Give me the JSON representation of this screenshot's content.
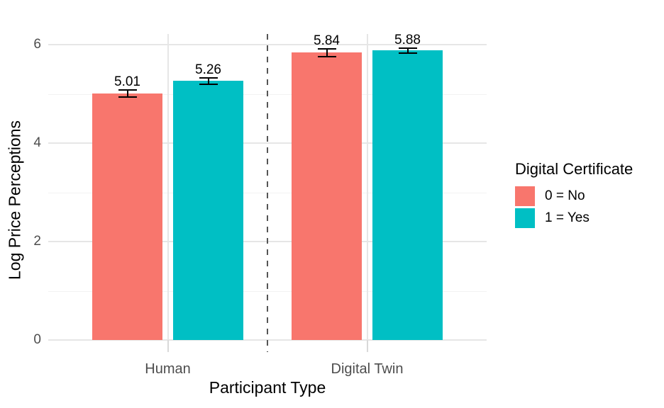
{
  "chart_data": {
    "type": "bar",
    "title": "",
    "xlabel": "Participant Type",
    "ylabel": "Log Price Perceptions",
    "categories": [
      "Human",
      "Digital Twin"
    ],
    "series": [
      {
        "name": "0 = No",
        "color": "#F8766D",
        "values": [
          5.01,
          5.84
        ],
        "errors": [
          0.07,
          0.08
        ],
        "value_labels": [
          "5.01",
          "5.84"
        ]
      },
      {
        "name": "1 = Yes",
        "color": "#00BFC4",
        "values": [
          5.26,
          5.88
        ],
        "errors": [
          0.07,
          0.05
        ],
        "value_labels": [
          "5.26",
          "5.88"
        ]
      }
    ],
    "y_ticks": [
      0,
      2,
      4,
      6
    ],
    "y_minor_ticks": [
      1,
      3,
      5
    ],
    "ylim": [
      0,
      6.2
    ],
    "legend": {
      "title": "Digital Certificate",
      "position": "right"
    },
    "grid": true,
    "annotations": {
      "group_separator": {
        "between": [
          "Human",
          "Digital Twin"
        ],
        "style": "dashed"
      }
    },
    "colors": {
      "background": "#FFFFFF",
      "grid_major": "#E6E6E6",
      "grid_minor": "#F2F2F2",
      "tick_text": "#4D4D4D",
      "axis_title_text": "#000000",
      "error_bar": "#000000",
      "separator": "#555555"
    }
  }
}
